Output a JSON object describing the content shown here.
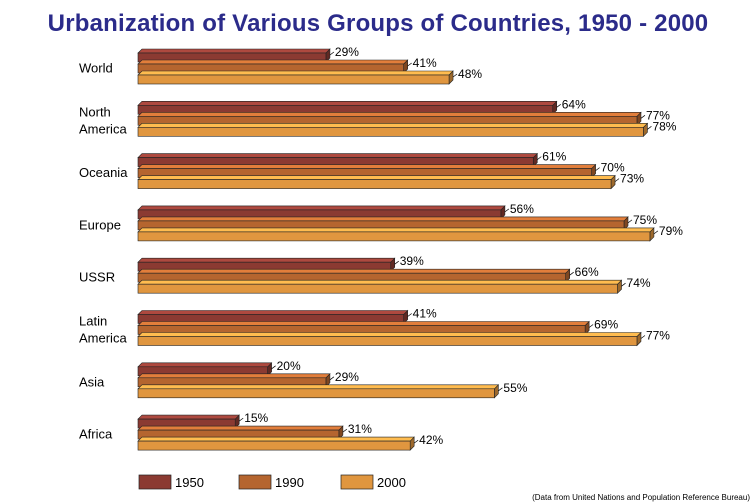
{
  "chart_data": {
    "type": "bar",
    "orientation": "horizontal",
    "title": "Urbanization of Various Groups of Countries, 1950 - 2000",
    "xlabel": "",
    "ylabel": "",
    "xlim": [
      0,
      100
    ],
    "grid": false,
    "legend_position": "bottom",
    "categories": [
      "World",
      "North America",
      "Oceania",
      "Europe",
      "USSR",
      "Latin America",
      "Asia",
      "Africa"
    ],
    "category_lines": [
      [
        "World"
      ],
      [
        "North",
        "America"
      ],
      [
        "Oceania"
      ],
      [
        "Europe"
      ],
      [
        "USSR"
      ],
      [
        "Latin",
        "America"
      ],
      [
        "Asia"
      ],
      [
        "Africa"
      ]
    ],
    "series": [
      {
        "name": "1950",
        "color": "#8b3a32",
        "values": [
          29,
          64,
          61,
          56,
          39,
          41,
          20,
          15
        ]
      },
      {
        "name": "1990",
        "color": "#b5652f",
        "values": [
          41,
          77,
          70,
          75,
          66,
          69,
          29,
          31
        ]
      },
      {
        "name": "2000",
        "color": "#e0963f",
        "values": [
          48,
          78,
          73,
          79,
          74,
          77,
          55,
          42
        ]
      }
    ],
    "value_suffix": "%",
    "source_note": "(Data from United Nations and Population Reference Bureau)"
  }
}
